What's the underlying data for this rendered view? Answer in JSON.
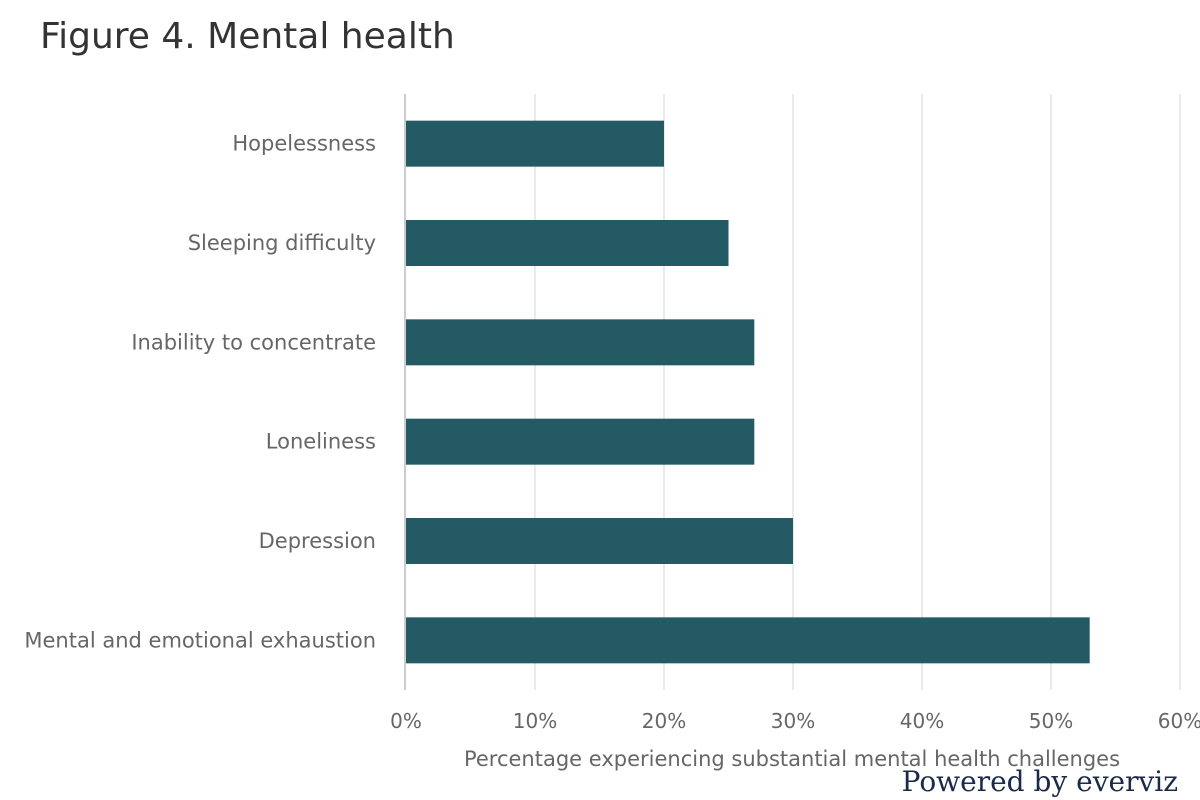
{
  "chart_data": {
    "type": "bar",
    "orientation": "horizontal",
    "title": "Figure 4. Mental health",
    "categories": [
      "Hopelessness",
      "Sleeping difficulty",
      "Inability to concentrate",
      "Loneliness",
      "Depression",
      "Mental and emotional exhaustion"
    ],
    "values": [
      20,
      25,
      27,
      27,
      30,
      53
    ],
    "xlabel": "Percentage experiencing substantial mental health challenges",
    "ylabel": "",
    "xlim": [
      0,
      60
    ],
    "tick_values": [
      0,
      10,
      20,
      30,
      40,
      50,
      60
    ],
    "tick_labels": [
      "0%",
      "10%",
      "20%",
      "30%",
      "40%",
      "50%",
      "60%"
    ],
    "grid": true,
    "bar_color": "#245a63"
  },
  "credit": "Powered by everviz"
}
